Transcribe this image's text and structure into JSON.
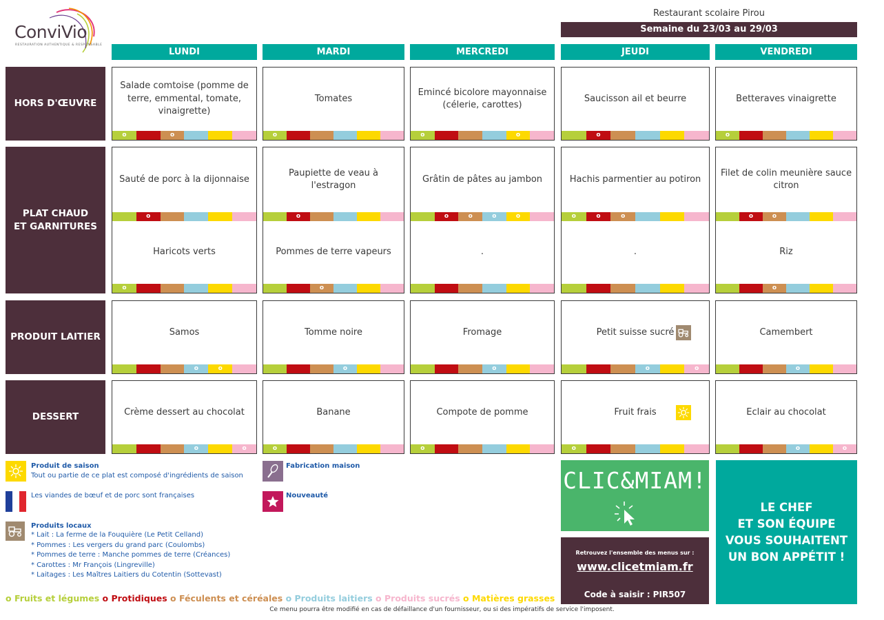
{
  "logo": {
    "name": "ConviVio",
    "tagline": "RESTAURATION AUTHENTIQUE & RESPONSABLE"
  },
  "header": {
    "restaurant": "Restaurant scolaire Pirou",
    "week": "Semaine du 23/03 au 29/03"
  },
  "days": [
    "LUNDI",
    "MARDI",
    "MERCREDI",
    "JEUDI",
    "VENDREDI"
  ],
  "rows": [
    {
      "label": "HORS D'ŒUVRE"
    },
    {
      "label": "PLAT CHAUD\nET GARNITURES"
    },
    {
      "label": "PRODUIT LAITIER"
    },
    {
      "label": "DESSERT"
    }
  ],
  "menu": {
    "hors_doeuvre": [
      {
        "dish": "Salade comtoise (pomme de terre, emmental, tomate, vinaigrette)",
        "marks": [
          1,
          0,
          1,
          0,
          0,
          0
        ]
      },
      {
        "dish": "Tomates",
        "marks": [
          1,
          0,
          0,
          0,
          0,
          0
        ]
      },
      {
        "dish": "Emincé bicolore mayonnaise (célerie, carottes)",
        "marks": [
          1,
          0,
          0,
          0,
          1,
          0
        ]
      },
      {
        "dish": "Saucisson ail et beurre",
        "marks": [
          0,
          1,
          0,
          0,
          0,
          0
        ]
      },
      {
        "dish": "Betteraves vinaigrette",
        "marks": [
          1,
          0,
          0,
          0,
          0,
          0
        ]
      }
    ],
    "plat_chaud": [
      {
        "dish": "Sauté de porc à la dijonnaise",
        "marks": [
          0,
          1,
          0,
          0,
          0,
          0
        ]
      },
      {
        "dish": "Paupiette de veau à l'estragon",
        "marks": [
          0,
          1,
          0,
          0,
          0,
          0
        ]
      },
      {
        "dish": "Grâtin de pâtes au jambon",
        "marks": [
          0,
          1,
          1,
          1,
          1,
          0
        ]
      },
      {
        "dish": "Hachis parmentier au potiron",
        "marks": [
          1,
          1,
          1,
          0,
          0,
          0
        ]
      },
      {
        "dish": "Filet de colin meunière sauce citron",
        "marks": [
          0,
          1,
          1,
          0,
          0,
          0
        ]
      }
    ],
    "garniture": [
      {
        "dish": "Haricots verts",
        "marks": [
          1,
          0,
          0,
          0,
          0,
          0
        ]
      },
      {
        "dish": "Pommes de terre vapeurs",
        "marks": [
          0,
          0,
          1,
          0,
          0,
          0
        ]
      },
      {
        "dish": ".",
        "marks": [
          0,
          0,
          0,
          0,
          0,
          0
        ]
      },
      {
        "dish": ".",
        "marks": [
          0,
          0,
          0,
          0,
          0,
          0
        ]
      },
      {
        "dish": "Riz",
        "marks": [
          0,
          0,
          1,
          0,
          0,
          0
        ]
      }
    ],
    "produit_laitier": [
      {
        "dish": "Samos",
        "marks": [
          0,
          0,
          0,
          1,
          1,
          0
        ]
      },
      {
        "dish": "Tomme noire",
        "marks": [
          0,
          0,
          0,
          1,
          0,
          0
        ]
      },
      {
        "dish": "Fromage",
        "marks": [
          0,
          0,
          0,
          1,
          0,
          0
        ]
      },
      {
        "dish": "Petit suisse sucré",
        "marks": [
          0,
          0,
          0,
          1,
          0,
          1
        ]
      },
      {
        "dish": "Camembert",
        "marks": [
          0,
          0,
          0,
          1,
          0,
          0
        ]
      }
    ],
    "dessert": [
      {
        "dish": "Crème dessert au chocolat",
        "marks": [
          0,
          0,
          0,
          1,
          0,
          1
        ]
      },
      {
        "dish": "Banane",
        "marks": [
          1,
          0,
          0,
          0,
          0,
          0
        ]
      },
      {
        "dish": "Compote de pomme",
        "marks": [
          1,
          0,
          0,
          0,
          0,
          0
        ]
      },
      {
        "dish": "Fruit frais",
        "marks": [
          1,
          0,
          0,
          0,
          0,
          0
        ]
      },
      {
        "dish": "Eclair au chocolat",
        "marks": [
          0,
          0,
          0,
          1,
          0,
          1
        ]
      }
    ]
  },
  "mark_symbol": "o",
  "badges": {
    "petit_suisse": "tractor-icon",
    "fruit_frais": "sun-icon"
  },
  "colors": {
    "teal": "#00a99d",
    "plum": "#4d2f3b",
    "green": "#b6cf3b",
    "red": "#c00d12",
    "brown": "#cd8f52",
    "blue": "#94cddd",
    "yellow": "#fdd900",
    "pink": "#f6b6cd",
    "clic_green": "#4ab56b",
    "legend_blue": "#1f5aa8"
  },
  "legend": {
    "saison_title": "Produit de saison",
    "saison_text": "Tout ou partie de ce plat est composé d'ingrédients de saison",
    "viandes_text": "Les viandes de bœuf et de porc sont françaises",
    "locaux_title": "Produits locaux",
    "locaux_items": [
      "* Lait : La ferme de la Fouquière (Le Petit Celland)",
      "* Pommes : Les vergers du grand parc (Coulombs)",
      "* Pommes de terre : Manche pommes de terre (Créances)",
      "* Carottes : Mr François (Lingreville)",
      "* Laitages : Les Maîtres Laitiers du Cotentin (Sottevast)"
    ],
    "maison_title": "Fabrication maison",
    "nouveaute_title": "Nouveauté"
  },
  "categories": [
    {
      "symbol": "o",
      "label": "Fruits et légumes",
      "color": "#b6cf3b"
    },
    {
      "symbol": "o",
      "label": "Protidiques",
      "color": "#c00d12"
    },
    {
      "symbol": "o",
      "label": "Féculents et céréales",
      "color": "#cd8f52"
    },
    {
      "symbol": "o",
      "label": "Produits laitiers",
      "color": "#94cddd"
    },
    {
      "symbol": "o",
      "label": "Produits sucrés",
      "color": "#f6b6cd"
    },
    {
      "symbol": "o",
      "label": "Matières grasses",
      "color": "#fdd900"
    }
  ],
  "clicmiam": {
    "logo": "CLIC&MIAM!",
    "intro": "Retrouvez l'ensemble des menus sur :",
    "url": "www.clicetmiam.fr",
    "code": "Code à saisir : PIR507"
  },
  "chef_message": "LE CHEF\nET SON ÉQUIPE\nVOUS SOUHAITENT\nUN BON APPÉTIT !",
  "footer_note": "Ce menu pourra être modifié en cas de défaillance d'un fournisseur, ou si des impératifs de service l'imposent."
}
